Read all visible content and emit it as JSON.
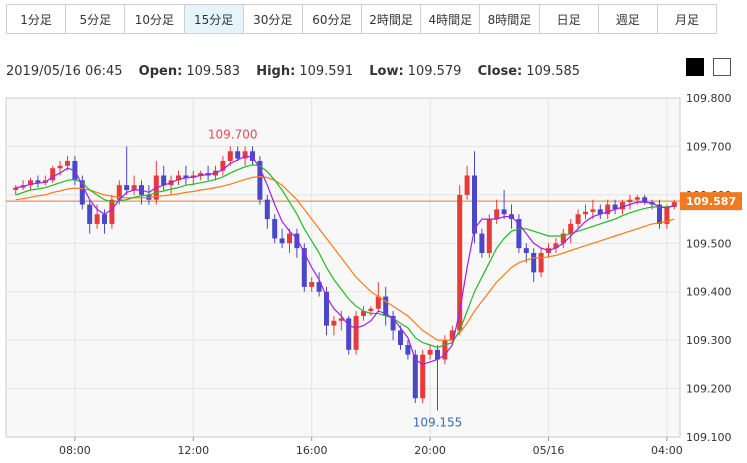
{
  "tabs": [
    {
      "label": "1分足",
      "active": false
    },
    {
      "label": "5分足",
      "active": false
    },
    {
      "label": "10分足",
      "active": false
    },
    {
      "label": "15分足",
      "active": true
    },
    {
      "label": "30分足",
      "active": false
    },
    {
      "label": "60分足",
      "active": false
    },
    {
      "label": "2時間足",
      "active": false
    },
    {
      "label": "4時間足",
      "active": false
    },
    {
      "label": "8時間足",
      "active": false
    },
    {
      "label": "日足",
      "active": false
    },
    {
      "label": "週足",
      "active": false
    },
    {
      "label": "月足",
      "active": false
    }
  ],
  "info": {
    "datetime": "2019/05/16 06:45",
    "open_label": "Open:",
    "open": "109.583",
    "high_label": "High:",
    "high": "109.591",
    "low_label": "Low:",
    "low": "109.579",
    "close_label": "Close:",
    "close": "109.585"
  },
  "colors": {
    "up": "#e83a3a",
    "down": "#4848c8",
    "ma_short": "#a020f0",
    "ma_mid": "#22bb22",
    "ma_long": "#ff7a1a",
    "price_line": "#f07a20",
    "price_tag": "#f07a20",
    "grid": "#e4e4e4",
    "plot_bg": "#f8f8f8"
  },
  "chart_data": {
    "type": "candlestick",
    "ylim": [
      109.1,
      109.8
    ],
    "y_ticks": [
      "109.800",
      "109.700",
      "109.600",
      "109.500",
      "109.400",
      "109.300",
      "109.200",
      "109.100"
    ],
    "x_ticks": [
      "08:00",
      "12:00",
      "16:00",
      "20:00",
      "05/16",
      "04:00"
    ],
    "current_price": "109.587",
    "high_annotation": "109.700",
    "low_annotation": "109.155",
    "candles": [
      [
        109.61,
        109.62,
        109.6,
        109.615
      ],
      [
        109.615,
        109.63,
        109.61,
        109.62
      ],
      [
        109.62,
        109.635,
        109.61,
        109.63
      ],
      [
        109.63,
        109.64,
        109.615,
        109.625
      ],
      [
        109.625,
        109.64,
        109.62,
        109.63
      ],
      [
        109.63,
        109.66,
        109.625,
        109.655
      ],
      [
        109.655,
        109.67,
        109.64,
        109.66
      ],
      [
        109.66,
        109.68,
        109.65,
        109.67
      ],
      [
        109.67,
        109.68,
        109.62,
        109.63
      ],
      [
        109.63,
        109.64,
        109.57,
        109.58
      ],
      [
        109.58,
        109.59,
        109.52,
        109.54
      ],
      [
        109.54,
        109.58,
        109.53,
        109.56
      ],
      [
        109.56,
        109.57,
        109.52,
        109.54
      ],
      [
        109.54,
        109.6,
        109.53,
        109.59
      ],
      [
        109.59,
        109.63,
        109.58,
        109.62
      ],
      [
        109.62,
        109.7,
        109.6,
        109.61
      ],
      [
        109.61,
        109.64,
        109.6,
        109.62
      ],
      [
        109.62,
        109.63,
        109.58,
        109.6
      ],
      [
        109.6,
        109.62,
        109.58,
        109.59
      ],
      [
        109.59,
        109.67,
        109.58,
        109.64
      ],
      [
        109.64,
        109.66,
        109.61,
        109.62
      ],
      [
        109.62,
        109.64,
        109.6,
        109.63
      ],
      [
        109.63,
        109.65,
        109.62,
        109.64
      ],
      [
        109.64,
        109.66,
        109.62,
        109.635
      ],
      [
        109.635,
        109.65,
        109.62,
        109.64
      ],
      [
        109.64,
        109.65,
        109.63,
        109.645
      ],
      [
        109.645,
        109.66,
        109.63,
        109.64
      ],
      [
        109.64,
        109.66,
        109.63,
        109.65
      ],
      [
        109.65,
        109.68,
        109.64,
        109.67
      ],
      [
        109.67,
        109.7,
        109.66,
        109.69
      ],
      [
        109.69,
        109.7,
        109.67,
        109.675
      ],
      [
        109.675,
        109.7,
        109.66,
        109.69
      ],
      [
        109.69,
        109.7,
        109.66,
        109.67
      ],
      [
        109.67,
        109.68,
        109.58,
        109.59
      ],
      [
        109.59,
        109.6,
        109.53,
        109.55
      ],
      [
        109.55,
        109.56,
        109.5,
        109.51
      ],
      [
        109.51,
        109.53,
        109.49,
        109.5
      ],
      [
        109.5,
        109.53,
        109.48,
        109.52
      ],
      [
        109.52,
        109.53,
        109.47,
        109.49
      ],
      [
        109.49,
        109.5,
        109.4,
        109.41
      ],
      [
        109.41,
        109.43,
        109.4,
        109.42
      ],
      [
        109.42,
        109.44,
        109.39,
        109.4
      ],
      [
        109.4,
        109.41,
        109.31,
        109.33
      ],
      [
        109.33,
        109.35,
        109.31,
        109.34
      ],
      [
        109.34,
        109.36,
        109.32,
        109.345
      ],
      [
        109.345,
        109.35,
        109.27,
        109.28
      ],
      [
        109.28,
        109.36,
        109.27,
        109.35
      ],
      [
        109.35,
        109.37,
        109.34,
        109.36
      ],
      [
        109.36,
        109.37,
        109.35,
        109.365
      ],
      [
        109.365,
        109.42,
        109.36,
        109.39
      ],
      [
        109.39,
        109.41,
        109.33,
        109.35
      ],
      [
        109.35,
        109.36,
        109.3,
        109.32
      ],
      [
        109.32,
        109.33,
        109.28,
        109.29
      ],
      [
        109.29,
        109.3,
        109.26,
        109.27
      ],
      [
        109.27,
        109.28,
        109.17,
        109.18
      ],
      [
        109.18,
        109.28,
        109.17,
        109.27
      ],
      [
        109.27,
        109.29,
        109.26,
        109.28
      ],
      [
        109.28,
        109.29,
        109.155,
        109.26
      ],
      [
        109.26,
        109.31,
        109.25,
        109.3
      ],
      [
        109.3,
        109.33,
        109.29,
        109.32
      ],
      [
        109.32,
        109.62,
        109.31,
        109.6
      ],
      [
        109.6,
        109.66,
        109.59,
        109.64
      ],
      [
        109.64,
        109.69,
        109.5,
        109.52
      ],
      [
        109.52,
        109.53,
        109.47,
        109.48
      ],
      [
        109.48,
        109.56,
        109.47,
        109.55
      ],
      [
        109.55,
        109.59,
        109.54,
        109.57
      ],
      [
        109.57,
        109.61,
        109.55,
        109.56
      ],
      [
        109.56,
        109.58,
        109.53,
        109.55
      ],
      [
        109.55,
        109.56,
        109.48,
        109.49
      ],
      [
        109.49,
        109.5,
        109.46,
        109.48
      ],
      [
        109.48,
        109.49,
        109.42,
        109.44
      ],
      [
        109.44,
        109.49,
        109.43,
        109.48
      ],
      [
        109.48,
        109.5,
        109.47,
        109.49
      ],
      [
        109.49,
        109.51,
        109.48,
        109.5
      ],
      [
        109.5,
        109.53,
        109.49,
        109.52
      ],
      [
        109.52,
        109.55,
        109.5,
        109.54
      ],
      [
        109.54,
        109.57,
        109.53,
        109.56
      ],
      [
        109.56,
        109.58,
        109.55,
        109.565
      ],
      [
        109.565,
        109.59,
        109.55,
        109.57
      ],
      [
        109.57,
        109.58,
        109.55,
        109.56
      ],
      [
        109.56,
        109.59,
        109.55,
        109.58
      ],
      [
        109.58,
        109.59,
        109.56,
        109.57
      ],
      [
        109.57,
        109.59,
        109.56,
        109.585
      ],
      [
        109.585,
        109.6,
        109.57,
        109.59
      ],
      [
        109.59,
        109.6,
        109.58,
        109.595
      ],
      [
        109.595,
        109.6,
        109.58,
        109.585
      ],
      [
        109.585,
        109.59,
        109.57,
        109.58
      ],
      [
        109.58,
        109.59,
        109.53,
        109.54
      ],
      [
        109.54,
        109.58,
        109.53,
        109.575
      ],
      [
        109.575,
        109.59,
        109.57,
        109.585
      ]
    ],
    "ma_short": [
      109.615,
      109.617,
      109.622,
      109.624,
      109.626,
      109.638,
      109.645,
      109.655,
      109.65,
      109.62,
      109.59,
      109.57,
      109.56,
      109.57,
      109.59,
      109.605,
      109.61,
      109.61,
      109.605,
      109.615,
      109.62,
      109.625,
      109.632,
      109.635,
      109.637,
      109.64,
      109.642,
      109.645,
      109.652,
      109.665,
      109.672,
      109.68,
      109.678,
      109.655,
      109.62,
      109.58,
      109.545,
      109.525,
      109.51,
      109.48,
      109.45,
      109.425,
      109.39,
      109.365,
      109.35,
      109.33,
      109.325,
      109.33,
      109.34,
      109.36,
      109.355,
      109.345,
      109.325,
      109.305,
      109.26,
      109.25,
      109.255,
      109.26,
      109.27,
      109.29,
      109.36,
      109.45,
      109.53,
      109.55,
      109.55,
      109.55,
      109.555,
      109.555,
      109.54,
      109.52,
      109.5,
      109.49,
      109.485,
      109.49,
      109.5,
      109.515,
      109.53,
      109.545,
      109.555,
      109.56,
      109.565,
      109.57,
      109.575,
      109.58,
      109.585,
      109.585,
      109.583,
      109.575,
      109.573,
      109.578
    ],
    "ma_mid": [
      109.6,
      109.605,
      109.61,
      109.612,
      109.615,
      109.62,
      109.625,
      109.63,
      109.632,
      109.625,
      109.61,
      109.6,
      109.59,
      109.585,
      109.588,
      109.59,
      109.595,
      109.598,
      109.6,
      109.605,
      109.608,
      109.612,
      109.615,
      109.62,
      109.622,
      109.625,
      109.628,
      109.632,
      109.637,
      109.645,
      109.652,
      109.658,
      109.662,
      109.66,
      109.648,
      109.63,
      109.61,
      109.585,
      109.56,
      109.53,
      109.505,
      109.48,
      109.45,
      109.425,
      109.405,
      109.385,
      109.37,
      109.36,
      109.355,
      109.355,
      109.35,
      109.345,
      109.335,
      109.325,
      109.305,
      109.295,
      109.29,
      109.285,
      109.29,
      109.295,
      109.32,
      109.36,
      109.4,
      109.43,
      109.46,
      109.49,
      109.51,
      109.525,
      109.53,
      109.53,
      109.525,
      109.52,
      109.515,
      109.515,
      109.515,
      109.52,
      109.525,
      109.53,
      109.535,
      109.54,
      109.545,
      109.55,
      109.557,
      109.563,
      109.568,
      109.572,
      109.575,
      109.575,
      109.575,
      109.577
    ],
    "ma_long": [
      109.59,
      109.592,
      109.595,
      109.598,
      109.6,
      109.605,
      109.608,
      109.612,
      109.614,
      109.613,
      109.61,
      109.605,
      109.6,
      109.597,
      109.595,
      109.594,
      109.594,
      109.594,
      109.595,
      109.597,
      109.598,
      109.6,
      109.602,
      109.605,
      109.607,
      109.61,
      109.612,
      109.615,
      109.618,
      109.622,
      109.627,
      109.632,
      109.636,
      109.638,
      109.636,
      109.63,
      109.62,
      109.605,
      109.59,
      109.57,
      109.55,
      109.53,
      109.51,
      109.49,
      109.47,
      109.45,
      109.43,
      109.415,
      109.4,
      109.39,
      109.38,
      109.37,
      109.36,
      109.35,
      109.335,
      109.32,
      109.31,
      109.3,
      109.3,
      109.3,
      109.315,
      109.335,
      109.36,
      109.38,
      109.4,
      109.42,
      109.435,
      109.45,
      109.46,
      109.465,
      109.47,
      109.47,
      109.472,
      109.475,
      109.48,
      109.485,
      109.49,
      109.495,
      109.5,
      109.505,
      109.51,
      109.515,
      109.52,
      109.525,
      109.53,
      109.535,
      109.54,
      109.542,
      109.545,
      109.55
    ]
  }
}
